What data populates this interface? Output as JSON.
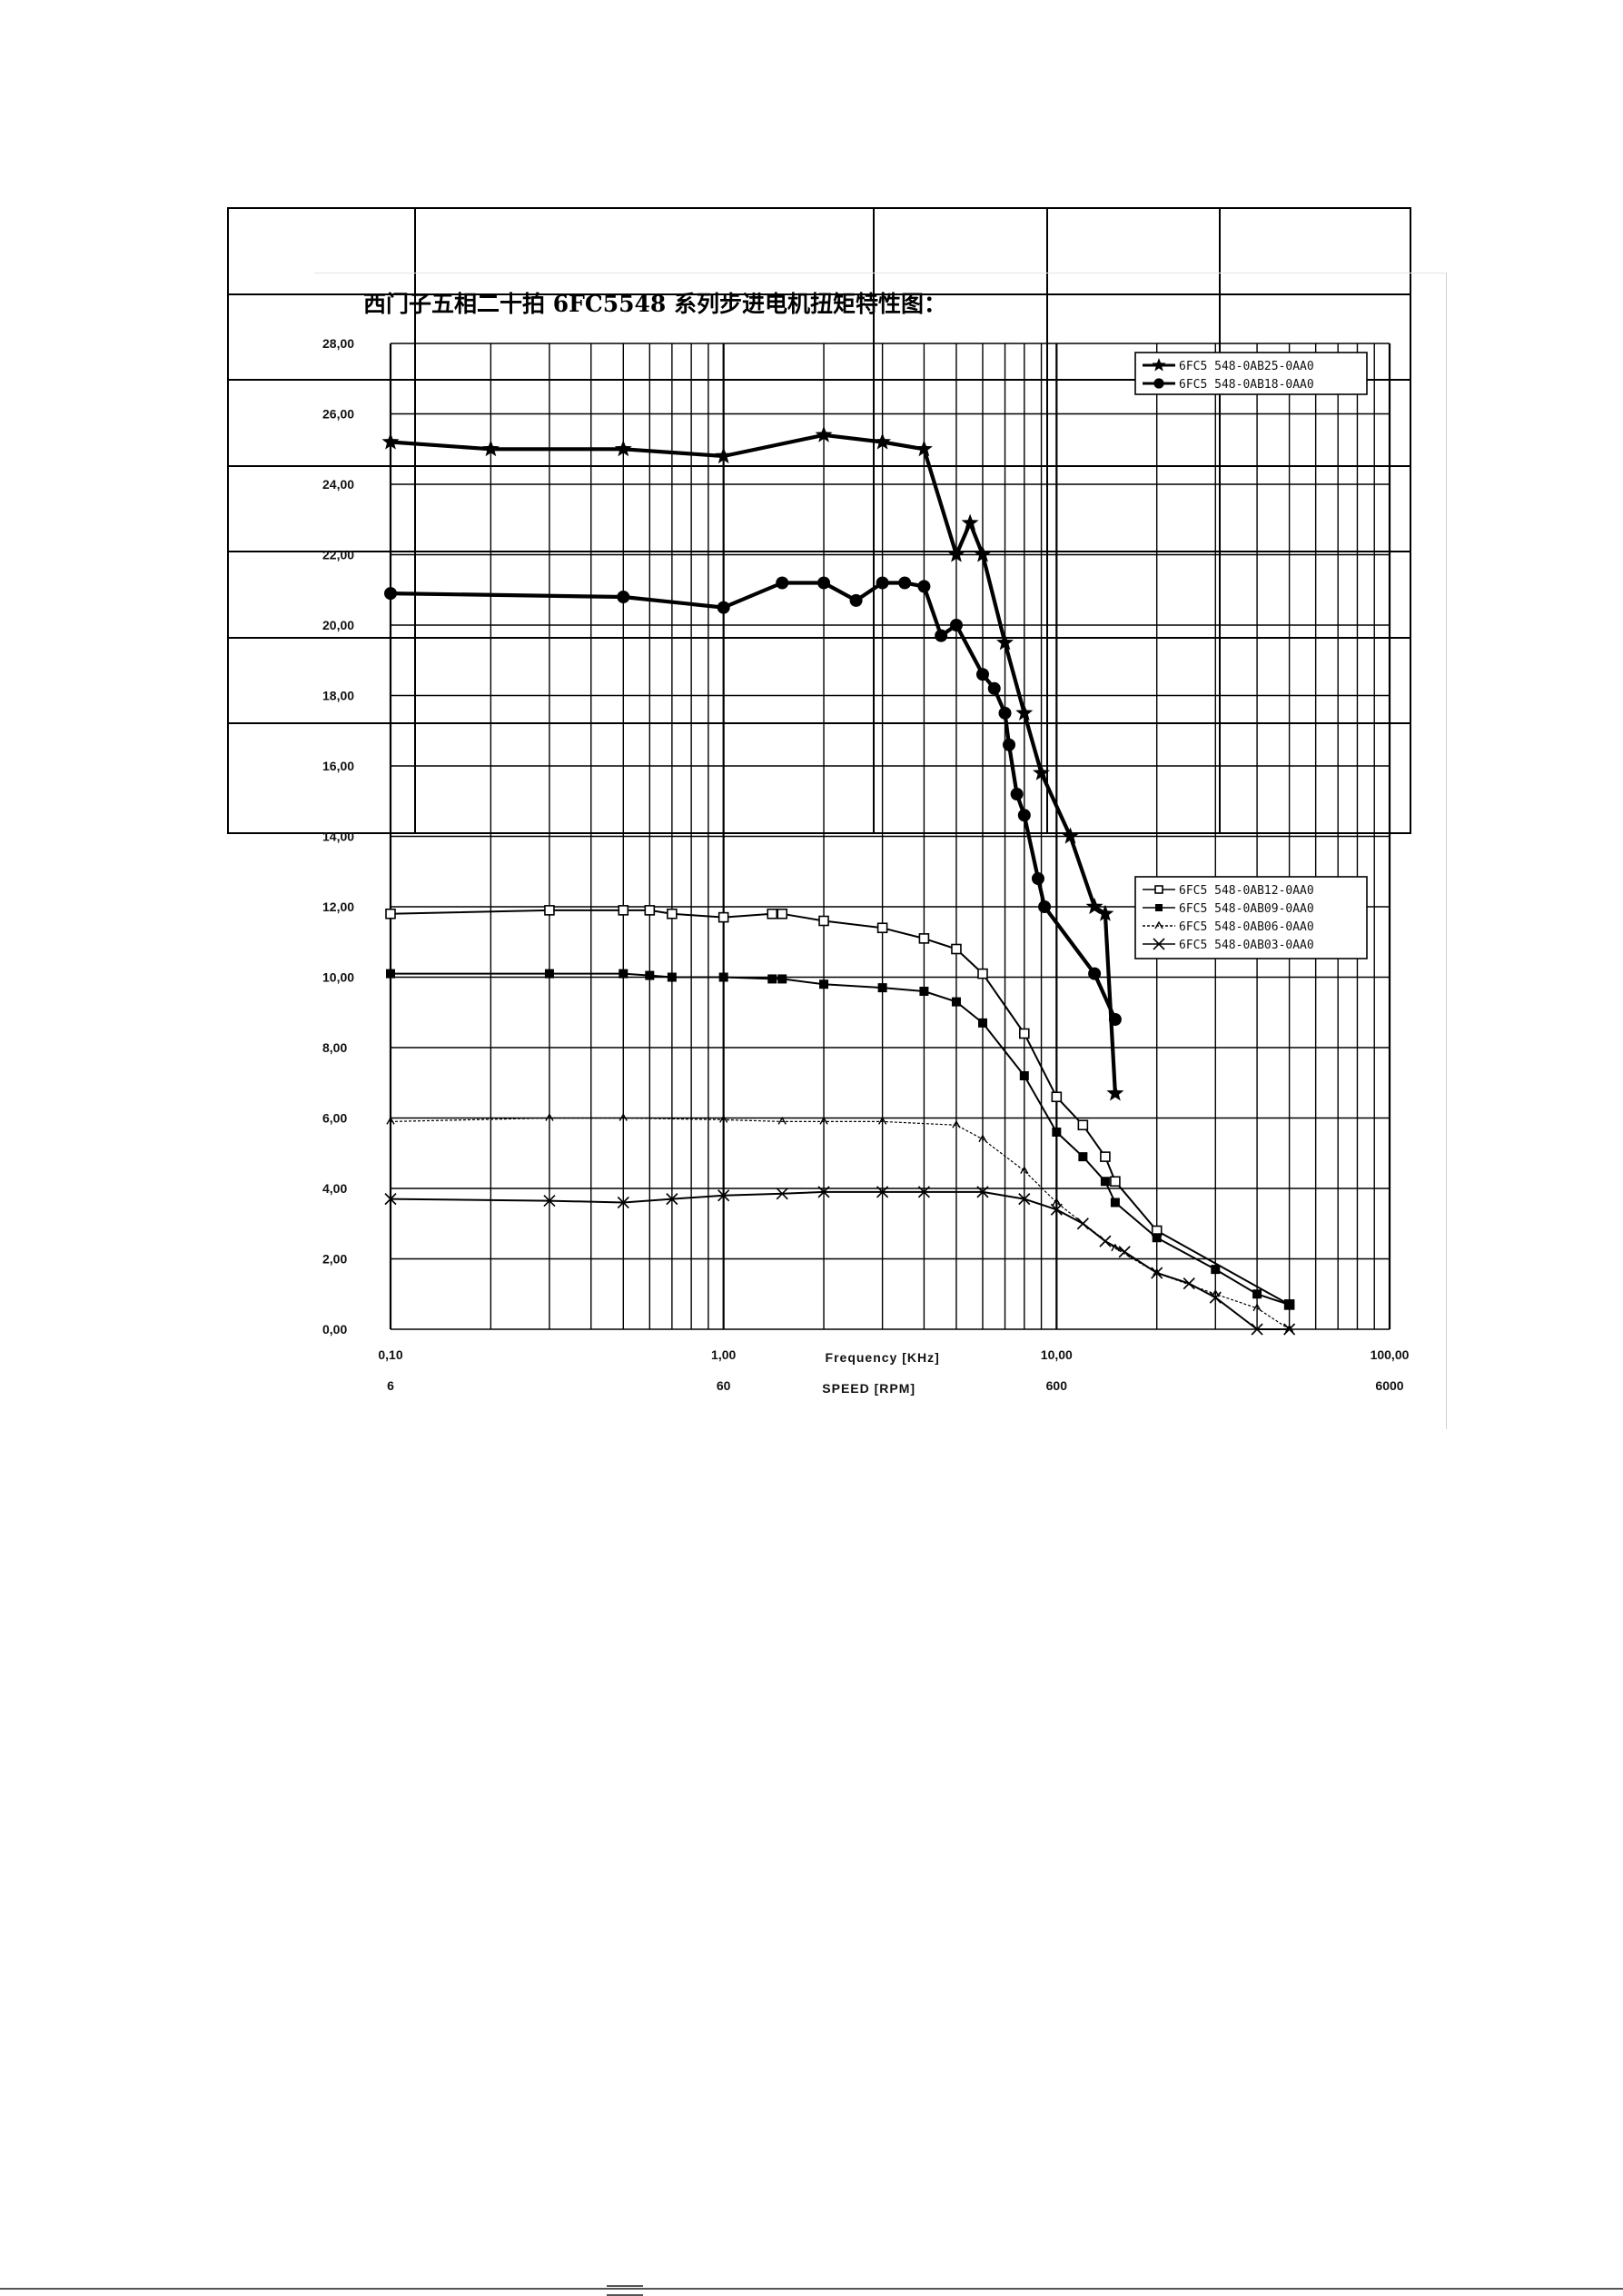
{
  "document": {
    "table_rows": 7,
    "table_cols": 5
  },
  "chart_data": {
    "type": "line",
    "title": "西门子五相二十拍 6FC5548 系列步进电机扭矩特性图：",
    "xlabel": "Frequency [KHz]",
    "x2label": "SPEED [RPM]",
    "ylabel": "",
    "x_scale": "log",
    "xlim": [
      0.1,
      100
    ],
    "ylim": [
      0,
      28
    ],
    "grid": true,
    "x_ticks": [
      "0,10",
      "1,00",
      "10,00",
      "100,00"
    ],
    "x2_ticks": [
      "6",
      "60",
      "600",
      "6000"
    ],
    "y_ticks": [
      "0,00",
      "2,00",
      "4,00",
      "6,00",
      "8,00",
      "10,00",
      "12,00",
      "14,00",
      "16,00",
      "18,00",
      "20,00",
      "22,00",
      "24,00",
      "26,00",
      "28,00"
    ],
    "legends": [
      {
        "placement": "top-right",
        "entries": [
          0,
          1
        ]
      },
      {
        "placement": "right",
        "entries": [
          2,
          3,
          4,
          5
        ]
      }
    ],
    "series": [
      {
        "name": "6FC5 548-0AB25-0AA0",
        "marker": "star",
        "weight": "heavy",
        "x": [
          0.1,
          0.2,
          0.5,
          1.0,
          2.0,
          3.0,
          4.0,
          5.0,
          5.5,
          6.0,
          7.0,
          8.0,
          9.0,
          11.0,
          13.0,
          14.0,
          15.0
        ],
        "y": [
          25.2,
          25.0,
          25.0,
          24.8,
          25.4,
          25.2,
          25.0,
          22.0,
          22.9,
          22.0,
          19.5,
          17.5,
          15.8,
          14.0,
          12.0,
          11.8,
          6.7
        ]
      },
      {
        "name": "6FC5 548-0AB18-0AA0",
        "marker": "circle",
        "weight": "heavy",
        "x": [
          0.1,
          0.5,
          1.0,
          1.5,
          2.0,
          2.5,
          3.0,
          3.5,
          4.0,
          4.5,
          5.0,
          6.0,
          6.5,
          7.0,
          7.2,
          7.6,
          8.0,
          8.8,
          9.2,
          13.0,
          15.0
        ],
        "y": [
          20.9,
          20.8,
          20.5,
          21.2,
          21.2,
          20.7,
          21.2,
          21.2,
          21.1,
          19.7,
          20.0,
          18.6,
          18.2,
          17.5,
          16.6,
          15.2,
          14.6,
          12.8,
          12.0,
          10.1,
          8.8
        ]
      },
      {
        "name": "6FC5 548-0AB12-0AA0",
        "marker": "square-open",
        "weight": "normal",
        "x": [
          0.1,
          0.3,
          0.5,
          0.6,
          0.7,
          1.0,
          1.4,
          1.5,
          2.0,
          3.0,
          4.0,
          5.0,
          6.0,
          8.0,
          10.0,
          12.0,
          14.0,
          15.0,
          20.0,
          50.0
        ],
        "y": [
          11.8,
          11.9,
          11.9,
          11.9,
          11.8,
          11.7,
          11.8,
          11.8,
          11.6,
          11.4,
          11.1,
          10.8,
          10.1,
          8.4,
          6.6,
          5.8,
          4.9,
          4.2,
          2.8,
          0.7
        ]
      },
      {
        "name": "6FC5 548-0AB09-0AA0",
        "marker": "square-filled",
        "weight": "normal",
        "x": [
          0.1,
          0.3,
          0.5,
          0.6,
          0.7,
          1.0,
          1.4,
          1.5,
          2.0,
          3.0,
          4.0,
          5.0,
          6.0,
          8.0,
          10.0,
          12.0,
          14.0,
          15.0,
          20.0,
          30.0,
          40.0,
          50.0
        ],
        "y": [
          10.1,
          10.1,
          10.1,
          10.05,
          10.0,
          10.0,
          9.95,
          9.95,
          9.8,
          9.7,
          9.6,
          9.3,
          8.7,
          7.2,
          5.6,
          4.9,
          4.2,
          3.6,
          2.6,
          1.7,
          1.0,
          0.7
        ]
      },
      {
        "name": "6FC5 548-0AB06-0AA0",
        "marker": "tick",
        "weight": "light",
        "x": [
          0.1,
          0.3,
          0.5,
          1.0,
          1.5,
          2.0,
          3.0,
          5.0,
          6.0,
          8.0,
          10.0,
          15.0,
          20.0,
          30.0,
          40.0,
          50.0
        ],
        "y": [
          5.9,
          6.0,
          6.0,
          5.95,
          5.9,
          5.9,
          5.9,
          5.8,
          5.4,
          4.5,
          3.6,
          2.3,
          1.6,
          1.0,
          0.6,
          0.0
        ]
      },
      {
        "name": "6FC5 548-0AB03-0AA0",
        "marker": "x",
        "weight": "normal",
        "x": [
          0.1,
          0.3,
          0.5,
          0.7,
          1.0,
          1.5,
          2.0,
          3.0,
          4.0,
          6.0,
          8.0,
          10.0,
          12.0,
          14.0,
          16.0,
          20.0,
          25.0,
          30.0,
          40.0,
          50.0
        ],
        "y": [
          3.7,
          3.65,
          3.6,
          3.7,
          3.8,
          3.85,
          3.9,
          3.9,
          3.9,
          3.9,
          3.7,
          3.4,
          3.0,
          2.5,
          2.2,
          1.6,
          1.3,
          0.9,
          0.0,
          0.0
        ]
      }
    ]
  }
}
